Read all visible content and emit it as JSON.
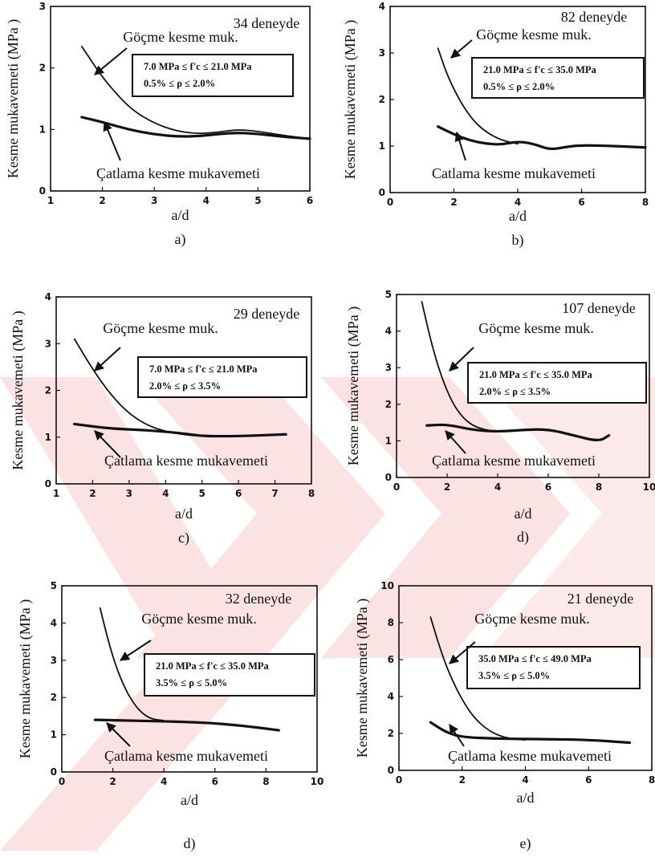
{
  "chart_data": [
    {
      "type": "line",
      "panel_label": "a)",
      "ylabel": "Kesme mukavemeti (MPa )",
      "xlabel": "a/d",
      "x_ticks": [
        1,
        2,
        3,
        4,
        5,
        6
      ],
      "y_ticks": [
        0,
        1,
        2,
        3
      ],
      "xlim": [
        1,
        6
      ],
      "ylim": [
        0,
        3
      ],
      "count_label": "34 deneyde",
      "condition_lines": [
        "7.0 MPa ≤ f'c ≤ 21.0 MPa",
        "0.5% ≤ ρ ≤ 2.0%"
      ],
      "series": [
        {
          "name": "Göçme kesme muk.",
          "x": [
            1.6,
            1.8,
            2.0,
            2.3,
            2.6,
            3.0,
            3.4,
            3.8,
            4.2,
            4.6,
            5.0,
            5.5,
            6.0
          ],
          "y": [
            2.35,
            2.1,
            1.85,
            1.55,
            1.3,
            1.1,
            0.98,
            0.93,
            0.95,
            1.0,
            0.97,
            0.9,
            0.85
          ]
        },
        {
          "name": "Çatlama kesme mukavemeti",
          "x": [
            1.6,
            2.0,
            2.5,
            3.0,
            3.5,
            4.0,
            4.5,
            5.0,
            5.5,
            6.0
          ],
          "y": [
            1.2,
            1.12,
            1.0,
            0.92,
            0.88,
            0.9,
            0.95,
            0.93,
            0.88,
            0.85
          ]
        }
      ]
    },
    {
      "type": "line",
      "panel_label": "b)",
      "ylabel": "Kesme mukavemeti (MPa )",
      "xlabel": "a/d",
      "x_ticks": [
        0,
        2,
        4,
        6,
        8
      ],
      "y_ticks": [
        0,
        1,
        2,
        3,
        4
      ],
      "xlim": [
        0,
        8
      ],
      "ylim": [
        0,
        4
      ],
      "count_label": "82 deneyde",
      "condition_lines": [
        "21.0 MPa ≤ f'c ≤ 35.0 MPa",
        "0.5% ≤ ρ ≤ 2.0%"
      ],
      "series": [
        {
          "name": "Göçme kesme muk.",
          "x": [
            1.5,
            1.8,
            2.2,
            2.6,
            3.0,
            3.5,
            4.0
          ],
          "y": [
            3.1,
            2.5,
            1.95,
            1.55,
            1.3,
            1.12,
            1.05
          ]
        },
        {
          "name": "Catlama kesme mukavemeti",
          "x": [
            1.5,
            2.0,
            2.5,
            3.0,
            3.5,
            4.0,
            4.5,
            5.0,
            5.5,
            6.0,
            7.0,
            8.0
          ],
          "y": [
            1.42,
            1.25,
            1.12,
            1.05,
            1.03,
            1.1,
            1.05,
            0.92,
            0.98,
            1.02,
            1.0,
            0.97
          ]
        }
      ]
    },
    {
      "type": "line",
      "panel_label": "c)",
      "ylabel": "Kesme mukavemeti (MPa )",
      "xlabel": "a/d",
      "x_ticks": [
        1,
        2,
        3,
        4,
        5,
        6,
        7,
        8
      ],
      "y_ticks": [
        0,
        1,
        2,
        3,
        4
      ],
      "xlim": [
        1,
        8
      ],
      "ylim": [
        0,
        4
      ],
      "count_label": "29 deneyde",
      "condition_lines": [
        "7.0 MPa ≤ f'c ≤ 21.0 MPa",
        "2.0% ≤ ρ ≤ 3.5%"
      ],
      "series": [
        {
          "name": "Göçme kesme muk.",
          "x": [
            1.5,
            2.0,
            2.5,
            3.0,
            3.5,
            4.0,
            4.5,
            5.0
          ],
          "y": [
            3.1,
            2.45,
            1.9,
            1.5,
            1.25,
            1.12,
            1.05,
            1.02
          ]
        },
        {
          "name": "Çatlama kesme mukavemeti",
          "x": [
            1.5,
            2.5,
            3.5,
            4.5,
            5.0,
            6.0,
            7.3
          ],
          "y": [
            1.28,
            1.18,
            1.15,
            1.08,
            1.02,
            1.02,
            1.06
          ]
        }
      ]
    },
    {
      "type": "line",
      "panel_label": "d)",
      "ylabel": "Kesme mukavemeti (MPa )",
      "xlabel": "a/d",
      "x_ticks": [
        0,
        2,
        4,
        6,
        8,
        10
      ],
      "y_ticks": [
        0,
        1,
        2,
        3,
        4,
        5
      ],
      "xlim": [
        0,
        10
      ],
      "ylim": [
        0,
        5
      ],
      "count_label": "107 deneyde",
      "condition_lines": [
        "21.0 MPa ≤ f'c ≤ 35.0 MPa",
        "2.0% ≤ ρ ≤ 3.5%"
      ],
      "series": [
        {
          "name": "Göçme kesme muk.",
          "x": [
            1.0,
            1.4,
            1.8,
            2.2,
            2.6,
            3.0,
            3.5,
            4.0
          ],
          "y": [
            4.8,
            3.6,
            2.7,
            2.05,
            1.65,
            1.42,
            1.3,
            1.25
          ]
        },
        {
          "name": "Çatlama kesme mukavemeti",
          "x": [
            1.2,
            2.0,
            3.0,
            4.0,
            5.0,
            6.0,
            7.0,
            8.0,
            8.4
          ],
          "y": [
            1.42,
            1.45,
            1.3,
            1.25,
            1.3,
            1.32,
            1.15,
            0.98,
            1.15
          ]
        }
      ]
    },
    {
      "type": "line",
      "panel_label": "d)",
      "ylabel": "Kesme mukavemeti (MPa )",
      "xlabel": "a/d",
      "x_ticks": [
        0,
        2,
        4,
        6,
        8,
        10
      ],
      "y_ticks": [
        0,
        1,
        2,
        3,
        4,
        5
      ],
      "xlim": [
        0,
        10
      ],
      "ylim": [
        0,
        5
      ],
      "count_label": "32 deneyde",
      "condition_lines": [
        "21.0 MPa ≤ f'c ≤ 35.0 MPa",
        "3.5% ≤ ρ ≤ 5.0%"
      ],
      "series": [
        {
          "name": "Göçme kesme muk.",
          "x": [
            1.5,
            1.9,
            2.3,
            2.7,
            3.1,
            3.5,
            4.0
          ],
          "y": [
            4.4,
            3.3,
            2.5,
            1.95,
            1.6,
            1.42,
            1.38
          ]
        },
        {
          "name": "Çatlama kesme mukavemeti",
          "x": [
            1.3,
            2.5,
            4.0,
            5.5,
            7.0,
            8.5
          ],
          "y": [
            1.4,
            1.38,
            1.36,
            1.33,
            1.25,
            1.12
          ]
        }
      ]
    },
    {
      "type": "line",
      "panel_label": "e)",
      "ylabel": "Kesme mukavemeti (MPa )",
      "xlabel": "a/d",
      "x_ticks": [
        0,
        2,
        4,
        6,
        8
      ],
      "y_ticks": [
        0,
        2,
        4,
        6,
        8,
        10
      ],
      "xlim": [
        0,
        8
      ],
      "ylim": [
        0,
        10
      ],
      "count_label": "21 deneyde",
      "condition_lines": [
        "35.0 MPa ≤ f'c ≤ 49.0 MPa",
        "3.5% ≤ ρ ≤ 5.0%"
      ],
      "series": [
        {
          "name": "Göçme kesme muk.",
          "x": [
            1.0,
            1.3,
            1.6,
            2.0,
            2.4,
            2.8,
            3.2,
            3.6,
            4.0
          ],
          "y": [
            8.3,
            6.6,
            5.2,
            3.8,
            2.8,
            2.2,
            1.85,
            1.7,
            1.65
          ]
        },
        {
          "name": "Çatlama kesme mukavemeti",
          "x": [
            1.0,
            1.5,
            2.0,
            3.0,
            4.0,
            5.0,
            6.0,
            7.3
          ],
          "y": [
            2.6,
            2.05,
            1.8,
            1.72,
            1.7,
            1.68,
            1.65,
            1.5
          ]
        }
      ]
    }
  ]
}
